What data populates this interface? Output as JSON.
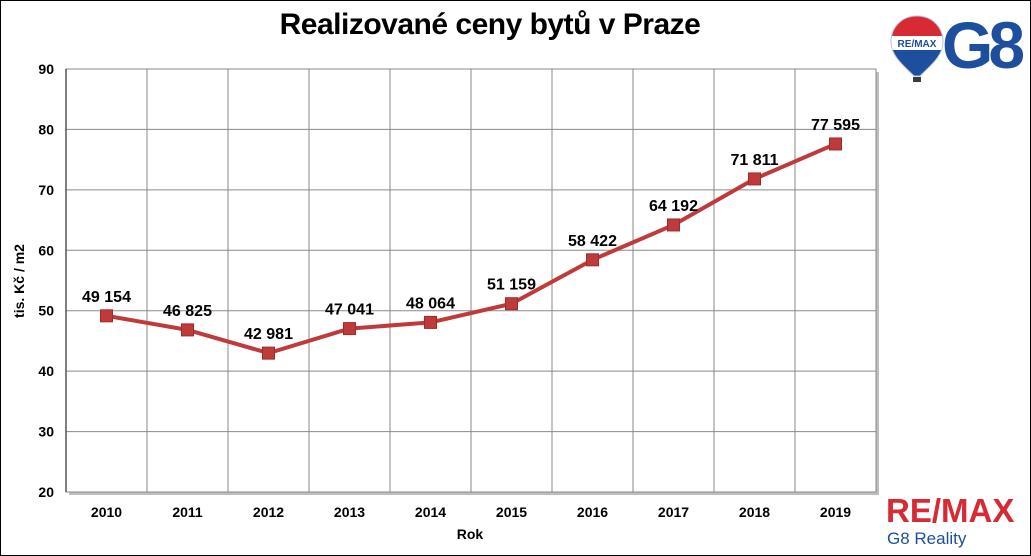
{
  "chart_data": {
    "type": "line",
    "title": "Realizované ceny bytů v Praze",
    "xlabel": "Rok",
    "ylabel": "tis. Kč / m2",
    "categories": [
      "2010",
      "2011",
      "2012",
      "2013",
      "2014",
      "2015",
      "2016",
      "2017",
      "2018",
      "2019"
    ],
    "ylim": [
      20,
      90
    ],
    "yticks": [
      20,
      30,
      40,
      50,
      60,
      70,
      80,
      90
    ],
    "grid": true,
    "series": [
      {
        "values": [
          49.154,
          46.825,
          42.981,
          47.041,
          48.064,
          51.159,
          58.422,
          64.192,
          71.811,
          77.595
        ],
        "labels": [
          "49 154",
          "46 825",
          "42 981",
          "47 041",
          "48 064",
          "51 159",
          "58 422",
          "64 192",
          "71 811",
          "77 595"
        ],
        "color": "#bf3b3b"
      }
    ]
  },
  "branding": {
    "balloon_text": "RE/MAX",
    "logo_g8": "G8",
    "wordmark": "RE/MAX",
    "sub": "G8 Reality",
    "colors": {
      "red": "#d72a35",
      "blue": "#1d4f9e"
    }
  }
}
